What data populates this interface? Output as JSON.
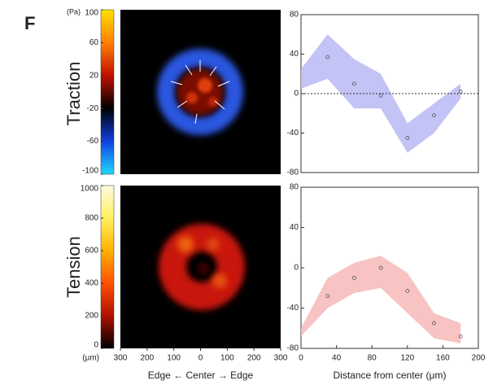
{
  "panel_label": "F",
  "row_labels": [
    "Traction",
    "Tension"
  ],
  "chart_data": [
    {
      "type": "heatmap",
      "colorbar": {
        "unit_label": "(Pa)",
        "lim": [
          -100,
          100
        ],
        "ticks": [
          100,
          60,
          20,
          -20,
          -60,
          -100
        ],
        "colors": [
          "#20d8ff",
          "#1040e0",
          "#000000",
          "#c01000",
          "#ff8000",
          "#ffe000"
        ]
      }
    },
    {
      "type": "line",
      "x": [
        0,
        30,
        60,
        90,
        120,
        150,
        180
      ],
      "values": [
        null,
        37,
        10,
        -2,
        -45,
        -22,
        2
      ],
      "band_upper": [
        25,
        60,
        35,
        20,
        -30,
        -10,
        10
      ],
      "band_lower": [
        5,
        15,
        -15,
        -15,
        -60,
        -40,
        -5
      ],
      "color": "#555555",
      "band_color": "#b8b8f4",
      "xlim": [
        0,
        200
      ],
      "ylim": [
        -80,
        80
      ],
      "yticks": [
        80,
        40,
        0,
        -40,
        -80
      ],
      "reference_line": 0
    },
    {
      "type": "heatmap",
      "colorbar": {
        "lim": [
          0,
          1000
        ],
        "ticks": [
          1000,
          800,
          600,
          400,
          200,
          0
        ],
        "colors": [
          "#000000",
          "#b01000",
          "#ff5000",
          "#ffb000",
          "#fff060",
          "#fffbe0"
        ]
      },
      "x_unit_label": "(μm)",
      "xlim": [
        -300,
        300
      ],
      "xticks": [
        {
          "value": -300,
          "label": "300"
        },
        {
          "value": -200,
          "label": "200"
        },
        {
          "value": -100,
          "label": "100"
        },
        0,
        100,
        200,
        300
      ],
      "xlabel": "Edge ← Center → Edge"
    },
    {
      "type": "line",
      "x": [
        0,
        30,
        60,
        90,
        120,
        150,
        180
      ],
      "values": [
        null,
        -28,
        -10,
        0,
        -23,
        -55,
        -68
      ],
      "band_upper": [
        -60,
        -10,
        5,
        12,
        -5,
        -45,
        -55
      ],
      "band_lower": [
        -68,
        -40,
        -25,
        -20,
        -45,
        -70,
        -75
      ],
      "color": "#555555",
      "band_color": "#f6b8b8",
      "xlim": [
        0,
        200
      ],
      "ylim": [
        -80,
        80
      ],
      "yticks": [
        80,
        40,
        0,
        -40,
        -80
      ],
      "xticks": [
        0,
        40,
        80,
        120,
        160,
        200
      ],
      "xlabel": "Distance from center (μm)"
    }
  ]
}
